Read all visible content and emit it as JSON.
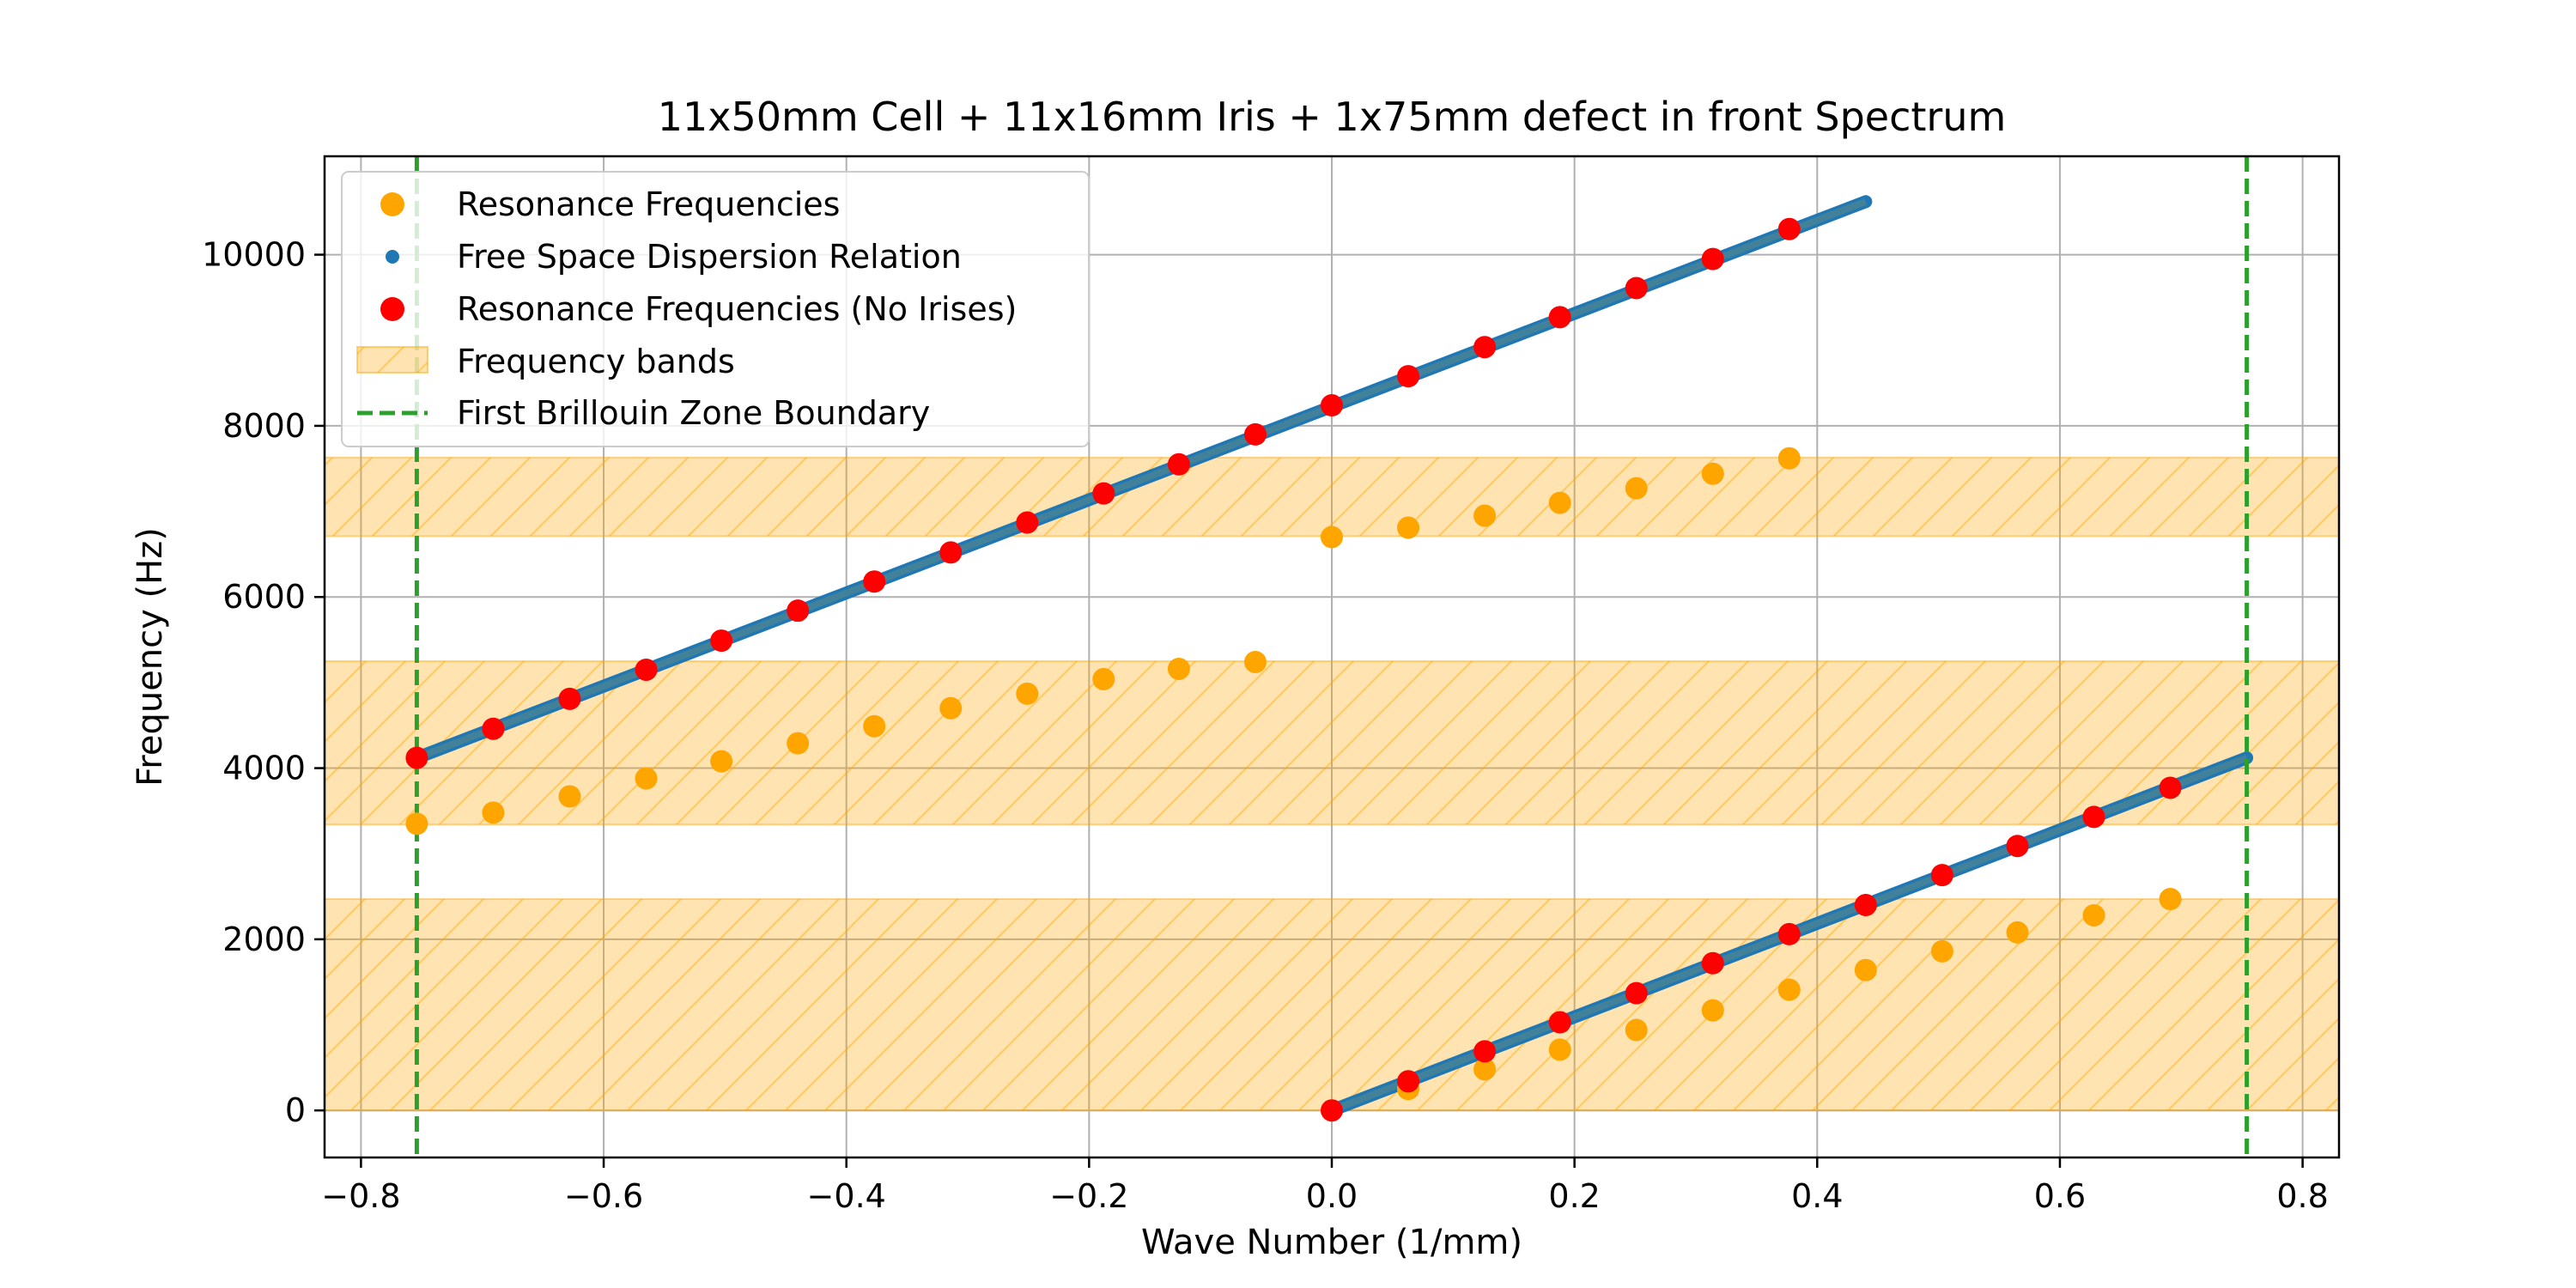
{
  "chart_data": {
    "type": "scatter",
    "title": "11x50mm Cell + 11x16mm Iris + 1x75mm defect in front Spectrum",
    "xlabel": "Wave Number (1/mm)",
    "ylabel": "Frequency (Hz)",
    "xlim": [
      -0.83,
      0.83
    ],
    "ylim": [
      -550,
      11150
    ],
    "xticks": [
      -0.8,
      -0.6,
      -0.4,
      -0.2,
      0.0,
      0.2,
      0.4,
      0.6,
      0.8
    ],
    "xtick_labels": [
      "−0.8",
      "−0.6",
      "−0.4",
      "−0.2",
      "0.0",
      "0.2",
      "0.4",
      "0.6",
      "0.8"
    ],
    "yticks": [
      0,
      2000,
      4000,
      6000,
      8000,
      10000
    ],
    "ytick_labels": [
      "0",
      "2000",
      "4000",
      "6000",
      "8000",
      "10000"
    ],
    "grid": true,
    "legend_position": "upper-left",
    "colors": {
      "resonance": "#ffa500",
      "free_space": "#1f77b4",
      "no_irises": "#ff0000",
      "band_fill": "#ffa500",
      "boundary": "#2ca02c",
      "grid": "#b0b0b0",
      "axis": "#000000"
    },
    "brillouin_boundary": [
      -0.754,
      0.754
    ],
    "frequency_bands": [
      {
        "ymin": 0,
        "ymax": 2470
      },
      {
        "ymin": 3340,
        "ymax": 5250
      },
      {
        "ymin": 6710,
        "ymax": 7630
      }
    ],
    "free_space_lines": [
      {
        "x": [
          -0.754,
          0.44
        ],
        "y": [
          4120,
          10620
        ]
      },
      {
        "x": [
          0.0,
          0.754
        ],
        "y": [
          0,
          4120
        ]
      }
    ],
    "series": [
      {
        "name": "Resonance Frequencies",
        "kind": "resonance",
        "x": [
          -0.754,
          -0.691,
          -0.628,
          -0.565,
          -0.503,
          -0.44,
          -0.377,
          -0.314,
          -0.251,
          -0.188,
          -0.126,
          -0.063,
          0.0,
          0.063,
          0.126,
          0.188,
          0.251,
          0.314,
          0.377,
          0.063,
          0.126,
          0.188,
          0.251,
          0.314,
          0.377,
          0.44,
          0.503,
          0.565,
          0.628,
          0.691
        ],
        "y": [
          3350,
          3480,
          3670,
          3880,
          4080,
          4290,
          4490,
          4700,
          4870,
          5040,
          5160,
          5240,
          6700,
          6810,
          6950,
          7100,
          7270,
          7440,
          7620,
          250,
          480,
          710,
          940,
          1170,
          1410,
          1640,
          1860,
          2080,
          2280,
          2470
        ]
      },
      {
        "name": "Free Space Dispersion Relation",
        "kind": "free_space"
      },
      {
        "name": "Resonance Frequencies (No Irises)",
        "kind": "no_irises",
        "x": [
          -0.754,
          -0.691,
          -0.628,
          -0.565,
          -0.503,
          -0.44,
          -0.377,
          -0.314,
          -0.251,
          -0.188,
          -0.126,
          -0.063,
          0.0,
          0.063,
          0.126,
          0.188,
          0.251,
          0.314,
          0.377,
          0.0,
          0.063,
          0.126,
          0.188,
          0.251,
          0.314,
          0.377,
          0.44,
          0.503,
          0.565,
          0.628,
          0.691
        ],
        "y": [
          4120,
          4460,
          4810,
          5150,
          5490,
          5840,
          6180,
          6520,
          6870,
          7210,
          7550,
          7900,
          8240,
          8580,
          8920,
          9270,
          9610,
          9950,
          10300,
          0,
          340,
          690,
          1030,
          1370,
          1720,
          2060,
          2400,
          2750,
          3090,
          3430,
          3770
        ]
      },
      {
        "name": "Frequency bands",
        "kind": "band"
      },
      {
        "name": "First Brillouin Zone Boundary",
        "kind": "boundary"
      }
    ]
  }
}
